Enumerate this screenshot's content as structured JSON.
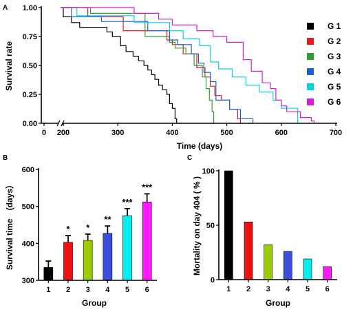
{
  "chart_data": [
    {
      "panel": "A",
      "type": "line",
      "xlabel": "Time (days)",
      "ylabel": "Survival rate",
      "xlim": [
        0,
        700
      ],
      "ylim": [
        0,
        1
      ],
      "x_ticks": [
        0,
        200,
        300,
        400,
        500,
        600,
        700
      ],
      "x_tick_labels": [
        "0",
        "200",
        "300",
        "400",
        "500",
        "600",
        "700"
      ],
      "y_ticks": [
        0,
        0.25,
        0.5,
        0.75,
        1.0
      ],
      "y_tick_labels": [
        "0.00",
        "0.25",
        "0.50",
        "0.75",
        "1.00"
      ],
      "axis_break": true,
      "legend_position": "right",
      "series": [
        {
          "name": "G 1",
          "color": "#000000",
          "step": true,
          "x": [
            0,
            200,
            215,
            230,
            280,
            290,
            305,
            315,
            328,
            338,
            348,
            355,
            362,
            368,
            375,
            382,
            390,
            395,
            400,
            405,
            408
          ],
          "y": [
            1.0,
            0.92,
            0.87,
            0.83,
            0.79,
            0.75,
            0.67,
            0.62,
            0.58,
            0.54,
            0.5,
            0.46,
            0.42,
            0.38,
            0.33,
            0.29,
            0.25,
            0.17,
            0.13,
            0.04,
            0.0
          ]
        },
        {
          "name": "G 2",
          "color": "#e41a1c",
          "step": true,
          "x": [
            0,
            245,
            310,
            390,
            400,
            420,
            445,
            460,
            470,
            478,
            490,
            505,
            520,
            525
          ],
          "y": [
            1.0,
            0.92,
            0.8,
            0.72,
            0.68,
            0.6,
            0.48,
            0.4,
            0.32,
            0.24,
            0.2,
            0.12,
            0.04,
            0.0
          ]
        },
        {
          "name": "G 3",
          "color": "#2ca02c",
          "step": true,
          "x": [
            0,
            250,
            350,
            395,
            405,
            425,
            440,
            455,
            462,
            468,
            473,
            476
          ],
          "y": [
            1.0,
            0.95,
            0.75,
            0.7,
            0.65,
            0.6,
            0.5,
            0.4,
            0.3,
            0.2,
            0.1,
            0.0
          ]
        },
        {
          "name": "G 4",
          "color": "#1f5fd6",
          "step": true,
          "x": [
            0,
            215,
            270,
            355,
            395,
            410,
            435,
            448,
            458,
            470,
            480,
            505,
            525,
            548
          ],
          "y": [
            1.0,
            0.92,
            0.88,
            0.8,
            0.72,
            0.68,
            0.6,
            0.52,
            0.44,
            0.36,
            0.2,
            0.12,
            0.04,
            0.0
          ]
        },
        {
          "name": "G 5",
          "color": "#00d5e0",
          "step": true,
          "x": [
            0,
            225,
            330,
            395,
            420,
            450,
            470,
            485,
            510,
            535,
            560,
            585,
            600,
            630
          ],
          "y": [
            1.0,
            0.93,
            0.87,
            0.8,
            0.73,
            0.67,
            0.53,
            0.47,
            0.4,
            0.33,
            0.27,
            0.2,
            0.13,
            0.0
          ]
        },
        {
          "name": "G 6",
          "color": "#d41ed4",
          "step": true,
          "x": [
            0,
            330,
            375,
            400,
            445,
            475,
            500,
            530,
            545,
            565,
            580,
            590,
            600,
            610,
            635,
            655,
            660
          ],
          "y": [
            1.0,
            0.95,
            0.9,
            0.85,
            0.8,
            0.75,
            0.7,
            0.55,
            0.45,
            0.35,
            0.3,
            0.2,
            0.15,
            0.1,
            0.05,
            0.02,
            0.0
          ]
        }
      ]
    },
    {
      "panel": "B",
      "type": "bar",
      "xlabel": "Group",
      "ylabel": "Survival time　(days）",
      "ylim": [
        300,
        600
      ],
      "y_ticks": [
        300,
        400,
        500,
        600
      ],
      "y_tick_labels": [
        "300",
        "400",
        "500",
        "600"
      ],
      "categories": [
        "1",
        "2",
        "3",
        "4",
        "5",
        "6"
      ],
      "values": [
        335,
        403,
        408,
        427,
        475,
        512
      ],
      "errors": [
        17,
        18,
        17,
        20,
        19,
        22
      ],
      "significance": [
        "",
        "*",
        "*",
        "**",
        "***",
        "***"
      ],
      "colors": [
        "#000000",
        "#ee1111",
        "#9acd00",
        "#3a4fdd",
        "#00f0f0",
        "#ff1aff"
      ]
    },
    {
      "panel": "C",
      "type": "bar",
      "xlabel": "Group",
      "ylabel": "Mortality on day 404 ( % )",
      "ylim": [
        0,
        100
      ],
      "y_ticks": [
        0,
        50,
        100
      ],
      "y_tick_labels": [
        "0",
        "50",
        "100"
      ],
      "categories": [
        "1",
        "2",
        "3",
        "4",
        "5",
        "6"
      ],
      "values": [
        100,
        53,
        32,
        26,
        19,
        12
      ],
      "colors": [
        "#000000",
        "#ee1111",
        "#9acd00",
        "#3a4fdd",
        "#00f0f0",
        "#ff1aff"
      ]
    }
  ]
}
